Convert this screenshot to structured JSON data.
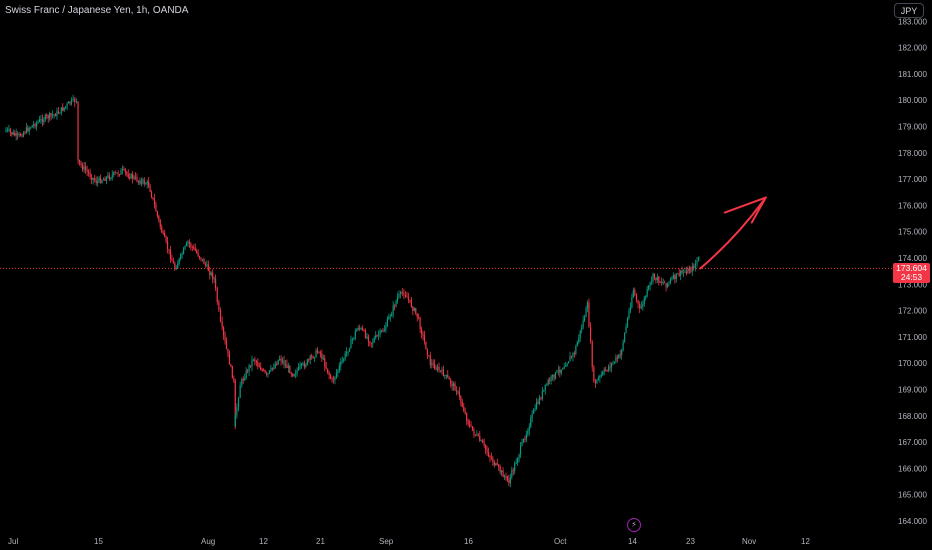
{
  "header": {
    "title": "Swiss Franc / Japanese Yen, 1h, OANDA"
  },
  "currency_button": "JPY",
  "price_tag": {
    "price": "173.604",
    "countdown": "24:53"
  },
  "flash_icon": "lightning-icon",
  "colors": {
    "up": "#089981",
    "down": "#f23645",
    "price_line": "#f23645",
    "arrow": "#f23645",
    "background": "#000000"
  },
  "chart_data": {
    "type": "candlestick",
    "title": "Swiss Franc / Japanese Yen, 1h, OANDA",
    "symbol": "CHFJPY",
    "interval": "1h",
    "source": "OANDA",
    "currency": "JPY",
    "last_price": 173.604,
    "ylim": [
      163.8,
      183.4
    ],
    "y_ticks": [
      "164.000",
      "165.000",
      "166.000",
      "167.000",
      "168.000",
      "169.000",
      "170.000",
      "171.000",
      "172.000",
      "173.000",
      "174.000",
      "175.000",
      "176.000",
      "177.000",
      "178.000",
      "179.000",
      "180.000",
      "181.000",
      "182.000",
      "183.000"
    ],
    "x_ticks": [
      "Jul",
      "15",
      "Aug",
      "12",
      "21",
      "Sep",
      "16",
      "Oct",
      "14",
      "23",
      "Nov",
      "12"
    ],
    "price_path": [
      {
        "t": "Jul 1",
        "p": 178.9
      },
      {
        "t": "Jul 3",
        "p": 178.6
      },
      {
        "t": "Jul 5",
        "p": 179.0
      },
      {
        "t": "Jul 7",
        "p": 179.3
      },
      {
        "t": "Jul 9",
        "p": 179.5
      },
      {
        "t": "Jul 11",
        "p": 179.9
      },
      {
        "t": "Jul 12",
        "p": 180.0
      },
      {
        "t": "Jul 12",
        "p": 177.7
      },
      {
        "t": "Jul 15",
        "p": 176.9
      },
      {
        "t": "Jul 17",
        "p": 177.1
      },
      {
        "t": "Jul 19",
        "p": 177.3
      },
      {
        "t": "Jul 21",
        "p": 177.0
      },
      {
        "t": "Jul 23",
        "p": 176.8
      },
      {
        "t": "Jul 25",
        "p": 175.0
      },
      {
        "t": "Jul 27",
        "p": 173.6
      },
      {
        "t": "Jul 29",
        "p": 174.6
      },
      {
        "t": "Jul 31",
        "p": 174.0
      },
      {
        "t": "Aug 2",
        "p": 173.2
      },
      {
        "t": "Aug 3",
        "p": 171.5
      },
      {
        "t": "Aug 5",
        "p": 169.3
      },
      {
        "t": "Aug 5",
        "p": 167.5
      },
      {
        "t": "Aug 6",
        "p": 169.2
      },
      {
        "t": "Aug 8",
        "p": 170.2
      },
      {
        "t": "Aug 10",
        "p": 169.5
      },
      {
        "t": "Aug 12",
        "p": 170.2
      },
      {
        "t": "Aug 14",
        "p": 169.6
      },
      {
        "t": "Aug 16",
        "p": 170.0
      },
      {
        "t": "Aug 18",
        "p": 170.5
      },
      {
        "t": "Aug 20",
        "p": 169.3
      },
      {
        "t": "Aug 22",
        "p": 170.3
      },
      {
        "t": "Aug 24",
        "p": 171.4
      },
      {
        "t": "Aug 26",
        "p": 170.8
      },
      {
        "t": "Aug 28",
        "p": 171.3
      },
      {
        "t": "Aug 30",
        "p": 172.5
      },
      {
        "t": "Aug 31",
        "p": 172.7
      },
      {
        "t": "Sep 2",
        "p": 171.8
      },
      {
        "t": "Sep 4",
        "p": 170.0
      },
      {
        "t": "Sep 6",
        "p": 169.6
      },
      {
        "t": "Sep 8",
        "p": 169.0
      },
      {
        "t": "Sep 10",
        "p": 167.6
      },
      {
        "t": "Sep 12",
        "p": 166.9
      },
      {
        "t": "Sep 14",
        "p": 166.1
      },
      {
        "t": "Sep 16",
        "p": 165.5
      },
      {
        "t": "Sep 18",
        "p": 166.9
      },
      {
        "t": "Sep 20",
        "p": 168.3
      },
      {
        "t": "Sep 22",
        "p": 169.3
      },
      {
        "t": "Sep 24",
        "p": 169.8
      },
      {
        "t": "Sep 26",
        "p": 170.4
      },
      {
        "t": "Sep 28",
        "p": 172.2
      },
      {
        "t": "Sep 29",
        "p": 169.2
      },
      {
        "t": "Oct 1",
        "p": 169.8
      },
      {
        "t": "Oct 3",
        "p": 170.3
      },
      {
        "t": "Oct 5",
        "p": 172.8
      },
      {
        "t": "Oct 6",
        "p": 172.0
      },
      {
        "t": "Oct 8",
        "p": 173.3
      },
      {
        "t": "Oct 10",
        "p": 173.0
      },
      {
        "t": "Oct 12",
        "p": 173.4
      },
      {
        "t": "Oct 14",
        "p": 173.6
      },
      {
        "t": "Oct 15",
        "p": 174.0
      }
    ],
    "projection_arrow": {
      "from": {
        "t": "Oct 15",
        "p": 173.6
      },
      "to": {
        "t": "Oct 25",
        "p": 176.3
      },
      "color": "#f23645"
    },
    "grid": false,
    "legend": "none"
  }
}
